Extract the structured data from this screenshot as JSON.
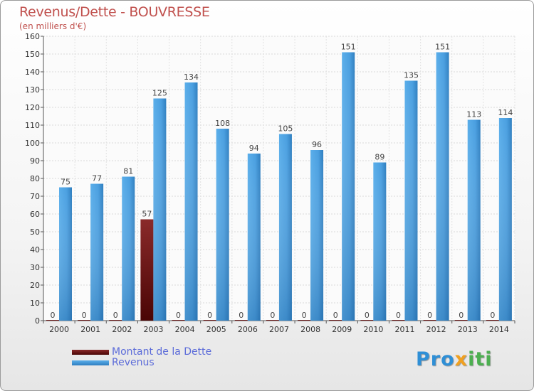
{
  "title": "Revenus/Dette - BOUVRESSE",
  "subtitle": "(en milliers d'€)",
  "colors": {
    "dette": "#6b1010",
    "revenus": "#4a9fe0",
    "title": "#c0504d"
  },
  "legend": [
    {
      "label": "Montant de la Dette",
      "color": "#6b1010"
    },
    {
      "label": "Revenus",
      "color": "#4a9fe0"
    }
  ],
  "logo": {
    "part1": "Pro",
    "part2": "x",
    "part3": "iti"
  },
  "chart_data": {
    "type": "bar",
    "categories": [
      "2000",
      "2001",
      "2002",
      "2003",
      "2004",
      "2005",
      "2006",
      "2007",
      "2008",
      "2009",
      "2010",
      "2011",
      "2012",
      "2013",
      "2014"
    ],
    "series": [
      {
        "name": "Montant de la Dette",
        "values": [
          0,
          0,
          0,
          57,
          0,
          0,
          0,
          0,
          0,
          0,
          0,
          0,
          0,
          0,
          0
        ]
      },
      {
        "name": "Revenus",
        "values": [
          75,
          77,
          81,
          125,
          134,
          108,
          94,
          105,
          96,
          151,
          89,
          135,
          151,
          113,
          114
        ]
      }
    ],
    "ylim": [
      0,
      160
    ],
    "yticks": [
      0,
      10,
      20,
      30,
      40,
      50,
      60,
      70,
      80,
      90,
      100,
      110,
      120,
      130,
      140,
      150,
      160
    ],
    "grid": true,
    "legend_position": "bottom-left"
  }
}
